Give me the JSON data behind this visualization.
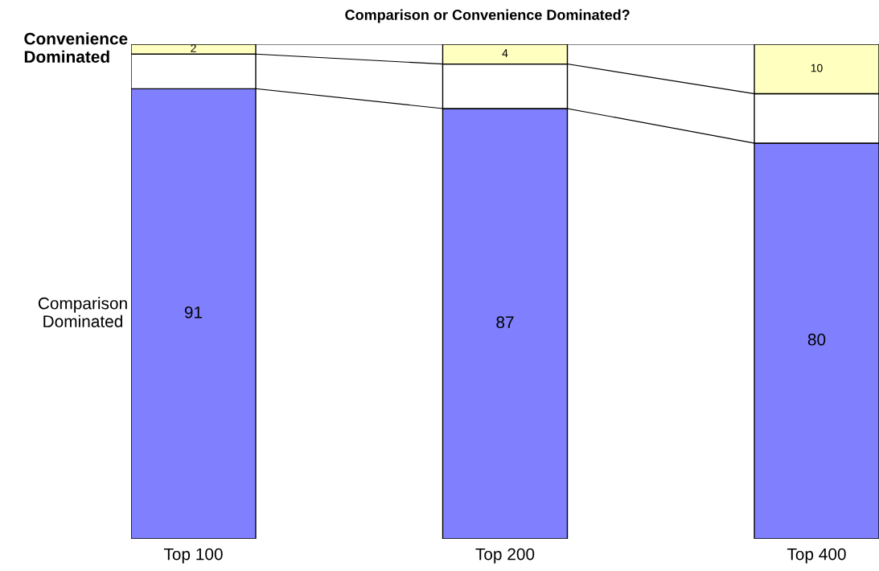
{
  "chart_data": {
    "type": "bar",
    "title": "Comparison or Convenience Dominated?",
    "stacked": true,
    "categories": [
      "Top 100",
      "Top 200",
      "Top 400"
    ],
    "ylim": [
      0,
      100
    ],
    "series": [
      {
        "name": "Comparison Dominated",
        "color": "#8080ff",
        "values": [
          91,
          87,
          80
        ],
        "value_labels": [
          "91",
          "87",
          "80"
        ]
      },
      {
        "color": "#ffffff",
        "values": [
          7,
          9,
          10
        ]
      },
      {
        "name": "Convenience Dominated",
        "color": "#ffffc0",
        "values": [
          2,
          4,
          10
        ],
        "value_labels": [
          "2",
          "4",
          "10"
        ]
      }
    ]
  }
}
